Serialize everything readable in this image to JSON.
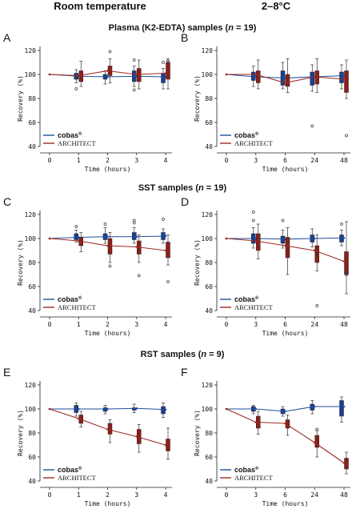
{
  "header": {
    "col_left": "Room temperature",
    "col_right": "2–8°C"
  },
  "sections": [
    {
      "title_pre": "Plasma (K2-EDTA) samples (",
      "title_n": "n",
      "title_post": " = 19)"
    },
    {
      "title_pre": "SST samples (",
      "title_n": "n",
      "title_post": " = 19)"
    },
    {
      "title_pre": "RST samples (",
      "title_n": "n",
      "title_post": " = 9)"
    }
  ],
  "colors": {
    "cobas": "#1f4e9e",
    "architect": "#9e2a22",
    "box_cobas": "#1a3f8f",
    "box_architect": "#8b1f1a"
  },
  "legend": {
    "cobas": "cobas",
    "cobas_sup": "®",
    "architect": "ARCHITECT"
  },
  "chart_data": [
    {
      "panel": "A",
      "type": "line",
      "xlabel": "Time (hours)",
      "ylabel": "Recovery (%)",
      "ylim": [
        40,
        120
      ],
      "yticks": [
        40,
        60,
        80,
        100,
        120
      ],
      "categories": [
        "0",
        "1",
        "2",
        "3",
        "4"
      ],
      "series": [
        {
          "name": "cobas®",
          "values": [
            100,
            98.5,
            98,
            98.5,
            98
          ],
          "boxes": [
            null,
            {
              "q1": 96,
              "q3": 101,
              "lo": 93,
              "hi": 104,
              "out": [
                88,
                97
              ]
            },
            {
              "q1": 96,
              "q3": 100,
              "lo": 92,
              "hi": 103,
              "out": []
            },
            {
              "q1": 94,
              "q3": 103,
              "lo": 90,
              "hi": 107,
              "out": [
                87,
                112
              ]
            },
            {
              "q1": 93,
              "q3": 101,
              "lo": 88,
              "hi": 105,
              "out": [
                110
              ]
            }
          ]
        },
        {
          "name": "ARCHITECT",
          "values": [
            100,
            99,
            103,
            100,
            101
          ],
          "boxes": [
            null,
            {
              "q1": 94,
              "q3": 103,
              "lo": 90,
              "hi": 111,
              "out": []
            },
            {
              "q1": 99,
              "q3": 107,
              "lo": 93,
              "hi": 113,
              "out": [
                119
              ]
            },
            {
              "q1": 94,
              "q3": 105,
              "lo": 88,
              "hi": 112,
              "out": []
            },
            {
              "q1": 96,
              "q3": 110,
              "lo": 88,
              "hi": 113,
              "out": [
                111
              ]
            }
          ]
        }
      ]
    },
    {
      "panel": "B",
      "type": "line",
      "xlabel": "Time (hours)",
      "ylabel": "Recovery (%)",
      "ylim": [
        40,
        120
      ],
      "yticks": [
        40,
        60,
        80,
        100,
        120
      ],
      "categories": [
        "0",
        "3",
        "6",
        "24",
        "48"
      ],
      "series": [
        {
          "name": "cobas®",
          "values": [
            100,
            98,
            97,
            98,
            99
          ],
          "boxes": [
            null,
            {
              "q1": 95,
              "q3": 102,
              "lo": 90,
              "hi": 107,
              "out": []
            },
            {
              "q1": 91,
              "q3": 103,
              "lo": 88,
              "hi": 110,
              "out": []
            },
            {
              "q1": 91,
              "q3": 102,
              "lo": 86,
              "hi": 108,
              "out": [
                57
              ]
            },
            {
              "q1": 93,
              "q3": 102,
              "lo": 88,
              "hi": 108,
              "out": []
            }
          ]
        },
        {
          "name": "ARCHITECT",
          "values": [
            100,
            100,
            93,
            98,
            96
          ],
          "boxes": [
            null,
            {
              "q1": 93,
              "q3": 103,
              "lo": 88,
              "hi": 112,
              "out": []
            },
            {
              "q1": 90,
              "q3": 100,
              "lo": 85,
              "hi": 113,
              "out": []
            },
            {
              "q1": 92,
              "q3": 103,
              "lo": 85,
              "hi": 113,
              "out": []
            },
            {
              "q1": 85,
              "q3": 103,
              "lo": 80,
              "hi": 112,
              "out": [
                49
              ]
            }
          ]
        }
      ]
    },
    {
      "panel": "C",
      "type": "line",
      "xlabel": "Time (hours)",
      "ylabel": "Recovery (%)",
      "ylim": [
        40,
        120
      ],
      "yticks": [
        40,
        60,
        80,
        100,
        120
      ],
      "categories": [
        "0",
        "1",
        "2",
        "3",
        "4"
      ],
      "series": [
        {
          "name": "cobas®",
          "values": [
            100,
            101,
            101.5,
            101.5,
            102
          ],
          "boxes": [
            null,
            {
              "q1": 99,
              "q3": 104,
              "lo": 97,
              "hi": 107,
              "out": [
                110
              ]
            },
            {
              "q1": 99,
              "q3": 104,
              "lo": 96,
              "hi": 109,
              "out": [
                112
              ]
            },
            {
              "q1": 99,
              "q3": 105,
              "lo": 96,
              "hi": 109,
              "out": [
                113,
                115
              ]
            },
            {
              "q1": 99,
              "q3": 105,
              "lo": 96,
              "hi": 108,
              "out": [
                116
              ]
            }
          ]
        },
        {
          "name": "ARCHITECT",
          "values": [
            100,
            98,
            94,
            93,
            90
          ],
          "boxes": [
            null,
            {
              "q1": 94,
              "q3": 101,
              "lo": 89,
              "hi": 105,
              "out": []
            },
            {
              "q1": 87,
              "q3": 100,
              "lo": 80,
              "hi": 105,
              "out": [
                77
              ]
            },
            {
              "q1": 87,
              "q3": 98,
              "lo": 80,
              "hi": 103,
              "out": [
                69
              ]
            },
            {
              "q1": 84,
              "q3": 97,
              "lo": 78,
              "hi": 103,
              "out": [
                64
              ]
            }
          ]
        }
      ]
    },
    {
      "panel": "D",
      "type": "line",
      "xlabel": "Time (hours)",
      "ylabel": "Recovery (%)",
      "ylim": [
        40,
        120
      ],
      "yticks": [
        40,
        60,
        80,
        100,
        120
      ],
      "categories": [
        "0",
        "3",
        "6",
        "24",
        "48"
      ],
      "series": [
        {
          "name": "cobas®",
          "values": [
            100,
            100,
            99.5,
            100,
            100.5
          ],
          "boxes": [
            null,
            {
              "q1": 96,
              "q3": 104,
              "lo": 92,
              "hi": 109,
              "out": [
                115,
                122
              ]
            },
            {
              "q1": 96,
              "q3": 102,
              "lo": 92,
              "hi": 107,
              "out": [
                115
              ]
            },
            {
              "q1": 97,
              "q3": 103,
              "lo": 93,
              "hi": 108,
              "out": []
            },
            {
              "q1": 97,
              "q3": 103,
              "lo": 94,
              "hi": 107,
              "out": [
                112
              ]
            }
          ]
        },
        {
          "name": "ARCHITECT",
          "values": [
            100,
            98,
            94,
            90,
            81
          ],
          "boxes": [
            null,
            {
              "q1": 90,
              "q3": 104,
              "lo": 83,
              "hi": 112,
              "out": []
            },
            {
              "q1": 84,
              "q3": 101,
              "lo": 70,
              "hi": 109,
              "out": []
            },
            {
              "q1": 80,
              "q3": 94,
              "lo": 73,
              "hi": 103,
              "out": [
                44,
                88
              ]
            },
            {
              "q1": 70,
              "q3": 89,
              "lo": 54,
              "hi": 114,
              "out": [
                70,
                72
              ]
            }
          ]
        }
      ]
    },
    {
      "panel": "E",
      "type": "line",
      "xlabel": "Time (hours)",
      "ylabel": "Recovery (%)",
      "ylim": [
        40,
        120
      ],
      "yticks": [
        40,
        60,
        80,
        100,
        120
      ],
      "categories": [
        "0",
        "1",
        "2",
        "3",
        "4"
      ],
      "series": [
        {
          "name": "cobas®",
          "values": [
            100,
            100,
            100,
            100.5,
            99.5
          ],
          "boxes": [
            null,
            {
              "q1": 97,
              "q3": 103,
              "lo": 94,
              "hi": 105,
              "out": []
            },
            {
              "q1": 98,
              "q3": 101,
              "lo": 96,
              "hi": 103,
              "out": []
            },
            {
              "q1": 99,
              "q3": 101,
              "lo": 97,
              "hi": 104,
              "out": []
            },
            {
              "q1": 96,
              "q3": 102,
              "lo": 93,
              "hi": 105,
              "out": []
            }
          ]
        },
        {
          "name": "ARCHITECT",
          "values": [
            100,
            92,
            83,
            77,
            70
          ],
          "boxes": [
            null,
            {
              "q1": 88,
              "q3": 95,
              "lo": 85,
              "hi": 98,
              "out": []
            },
            {
              "q1": 79,
              "q3": 88,
              "lo": 72,
              "hi": 91,
              "out": []
            },
            {
              "q1": 71,
              "q3": 83,
              "lo": 64,
              "hi": 87,
              "out": []
            },
            {
              "q1": 65,
              "q3": 75,
              "lo": 58,
              "hi": 84,
              "out": []
            }
          ]
        }
      ]
    },
    {
      "panel": "F",
      "type": "line",
      "xlabel": "Time (hours)",
      "ylabel": "Recovery (%)",
      "ylim": [
        40,
        120
      ],
      "yticks": [
        40,
        60,
        80,
        100,
        120
      ],
      "categories": [
        "0",
        "3",
        "6",
        "24",
        "48"
      ],
      "series": [
        {
          "name": "cobas®",
          "values": [
            100,
            100,
            98,
            102,
            102
          ],
          "boxes": [
            null,
            {
              "q1": 98,
              "q3": 102,
              "lo": 96,
              "hi": 103,
              "out": []
            },
            {
              "q1": 96,
              "q3": 100,
              "lo": 94,
              "hi": 102,
              "out": []
            },
            {
              "q1": 99,
              "q3": 104,
              "lo": 96,
              "hi": 107,
              "out": []
            },
            {
              "q1": 94,
              "q3": 107,
              "lo": 89,
              "hi": 110,
              "out": []
            }
          ]
        },
        {
          "name": "ARCHITECT",
          "values": [
            100,
            89,
            88,
            72,
            55
          ],
          "boxes": [
            null,
            {
              "q1": 84,
              "q3": 94,
              "lo": 79,
              "hi": 98,
              "out": []
            },
            {
              "q1": 84,
              "q3": 91,
              "lo": 78,
              "hi": 95,
              "out": []
            },
            {
              "q1": 68,
              "q3": 78,
              "lo": 60,
              "hi": 82,
              "out": [
                83
              ]
            },
            {
              "q1": 50,
              "q3": 59,
              "lo": 46,
              "hi": 64,
              "out": []
            }
          ]
        }
      ]
    }
  ]
}
